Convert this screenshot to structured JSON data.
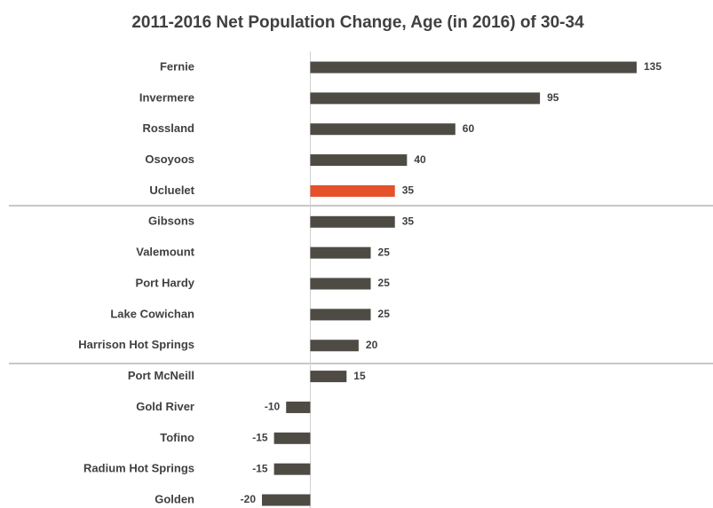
{
  "chart_data": {
    "type": "barh",
    "title": "2011-2016 Net Population Change, Age (in 2016) of 30-34",
    "categories": [
      "Fernie",
      "Invermere",
      "Rossland",
      "Osoyoos",
      "Ucluelet",
      "Gibsons",
      "Valemount",
      "Port Hardy",
      "Lake Cowichan",
      "Harrison Hot Springs",
      "Port McNeill",
      "Gold River",
      "Tofino",
      "Radium Hot Springs",
      "Golden"
    ],
    "values": [
      135,
      95,
      60,
      40,
      35,
      35,
      25,
      25,
      25,
      20,
      15,
      -10,
      -15,
      -15,
      -20
    ],
    "colors": [
      "#4d4b43",
      "#4d4b43",
      "#4d4b43",
      "#4d4b43",
      "#e4512b",
      "#4d4b43",
      "#4d4b43",
      "#4d4b43",
      "#4d4b43",
      "#4d4b43",
      "#4d4b43",
      "#4d4b43",
      "#4d4b43",
      "#4d4b43",
      "#4d4b43"
    ],
    "xlim": [
      -20,
      135
    ]
  }
}
